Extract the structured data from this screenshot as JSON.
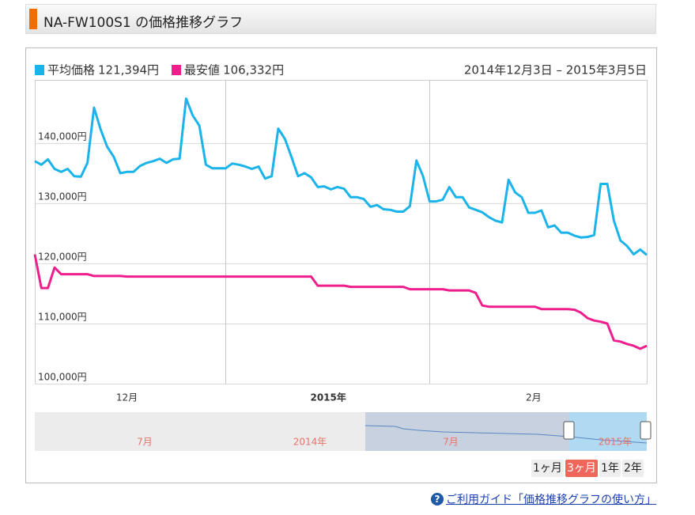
{
  "header": {
    "title": "NA-FW100S1 の価格推移グラフ"
  },
  "chart_data": {
    "type": "line",
    "subtitle": "2014年12月3日 – 2015年3月5日",
    "series": [
      {
        "name": "平均価格",
        "legend_value": "121,394円",
        "color": "#1ab4ea",
        "values": [
          137000,
          136400,
          137300,
          135700,
          135200,
          135700,
          134500,
          134400,
          136700,
          145900,
          142300,
          139400,
          137700,
          135000,
          135200,
          135200,
          136200,
          136700,
          137000,
          137400,
          136700,
          137300,
          137400,
          147400,
          144600,
          142900,
          136400,
          135800,
          135800,
          135800,
          136600,
          136400,
          136100,
          135700,
          136100,
          134100,
          134500,
          142400,
          140700,
          137700,
          134500,
          135000,
          134300,
          132700,
          132800,
          132300,
          132700,
          132400,
          131000,
          131000,
          130700,
          129400,
          129700,
          129000,
          128900,
          128600,
          128600,
          129500,
          137100,
          134500,
          130300,
          130300,
          130600,
          132700,
          131000,
          131000,
          129300,
          128900,
          128500,
          127700,
          127100,
          126800,
          133900,
          131800,
          131000,
          128400,
          128400,
          128800,
          126000,
          126300,
          125100,
          125100,
          124600,
          124300,
          124400,
          124700,
          133200,
          133200,
          127100,
          123800,
          122900,
          121500,
          122300,
          121400
        ]
      },
      {
        "name": "最安値",
        "legend_value": "106,332円",
        "color": "#ee1e8c",
        "values": [
          121500,
          115900,
          115900,
          119300,
          118200,
          118200,
          118200,
          118200,
          118200,
          117900,
          117900,
          117900,
          117900,
          117900,
          117800,
          117800,
          117800,
          117800,
          117800,
          117800,
          117800,
          117800,
          117800,
          117800,
          117800,
          117800,
          117800,
          117800,
          117800,
          117800,
          117800,
          117800,
          117800,
          117800,
          117800,
          117800,
          117800,
          117800,
          117800,
          117800,
          117800,
          117800,
          117800,
          116300,
          116300,
          116300,
          116300,
          116300,
          116100,
          116100,
          116100,
          116100,
          116100,
          116100,
          116100,
          116100,
          116100,
          115700,
          115700,
          115700,
          115700,
          115700,
          115700,
          115500,
          115500,
          115500,
          115500,
          115100,
          113000,
          112800,
          112800,
          112800,
          112800,
          112800,
          112800,
          112800,
          112800,
          112400,
          112400,
          112400,
          112400,
          112400,
          112300,
          111800,
          110900,
          110500,
          110300,
          110000,
          107200,
          107000,
          106600,
          106300,
          105800,
          106300
        ]
      }
    ],
    "xlim": [
      0,
      93
    ],
    "xticks": [
      {
        "value": 14,
        "label": "12月"
      },
      {
        "value": 44.6,
        "label": "2015年"
      },
      {
        "value": 75.8,
        "label": "2月"
      }
    ],
    "xgrid": [
      29,
      60
    ],
    "ylim": [
      100000,
      150500
    ],
    "yticks": [
      {
        "value": 100000,
        "label": "100,000円"
      },
      {
        "value": 110000,
        "label": "110,000円"
      },
      {
        "value": 120000,
        "label": "120,000円"
      },
      {
        "value": 130000,
        "label": "130,000円"
      },
      {
        "value": 140000,
        "label": "140,000円"
      }
    ],
    "grid": true,
    "navigator_labels": [
      "7月",
      "2014年",
      "7月",
      "2015年"
    ],
    "range_buttons": [
      "1ヶ月",
      "3ヶ月",
      "1年",
      "2年"
    ],
    "range_selected": 1
  },
  "footer": {
    "link": "ご利用ガイド「価格推移グラフの使い方」"
  }
}
